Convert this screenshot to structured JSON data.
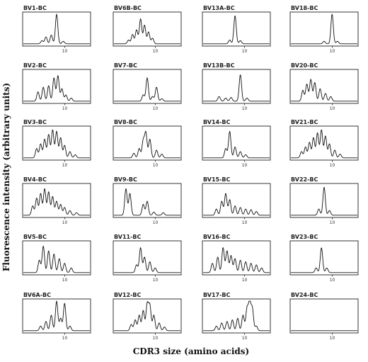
{
  "figure": {
    "ylabel": "Fluorescence intensity (arbitrary units)",
    "xlabel": "CDR3 size (amino acids)"
  },
  "chart_data": {
    "type": "line",
    "layout": "small-multiples grid, 6 rows x 4 columns",
    "x_tick_label": "10",
    "baseline": 0.05,
    "panels": [
      {
        "title": "BV1-BC",
        "peaks": [
          [
            0.28,
            0.1
          ],
          [
            0.34,
            0.22
          ],
          [
            0.42,
            0.28
          ],
          [
            0.5,
            0.95
          ],
          [
            0.6,
            0.08
          ]
        ]
      },
      {
        "title": "BV6B-BC",
        "peaks": [
          [
            0.22,
            0.12
          ],
          [
            0.28,
            0.3
          ],
          [
            0.34,
            0.45
          ],
          [
            0.4,
            0.8
          ],
          [
            0.46,
            0.6
          ],
          [
            0.52,
            0.38
          ],
          [
            0.58,
            0.18
          ]
        ]
      },
      {
        "title": "BV13A-BC",
        "peaks": [
          [
            0.4,
            0.12
          ],
          [
            0.48,
            0.9
          ],
          [
            0.56,
            0.1
          ]
        ]
      },
      {
        "title": "BV18-BC",
        "peaks": [
          [
            0.5,
            0.08
          ],
          [
            0.62,
            0.95
          ],
          [
            0.7,
            0.08
          ]
        ]
      },
      {
        "title": "BV2-BC",
        "peaks": [
          [
            0.22,
            0.3
          ],
          [
            0.3,
            0.45
          ],
          [
            0.38,
            0.5
          ],
          [
            0.46,
            0.75
          ],
          [
            0.52,
            0.82
          ],
          [
            0.58,
            0.4
          ],
          [
            0.64,
            0.2
          ],
          [
            0.72,
            0.1
          ]
        ]
      },
      {
        "title": "BV7-BC",
        "peaks": [
          [
            0.44,
            0.2
          ],
          [
            0.5,
            0.75
          ],
          [
            0.58,
            0.15
          ],
          [
            0.64,
            0.45
          ],
          [
            0.72,
            0.08
          ]
        ]
      },
      {
        "title": "BV13B-BC",
        "peaks": [
          [
            0.24,
            0.15
          ],
          [
            0.34,
            0.1
          ],
          [
            0.42,
            0.12
          ],
          [
            0.56,
            0.85
          ],
          [
            0.66,
            0.1
          ]
        ]
      },
      {
        "title": "BV20-BC",
        "peaks": [
          [
            0.18,
            0.35
          ],
          [
            0.24,
            0.55
          ],
          [
            0.3,
            0.7
          ],
          [
            0.36,
            0.6
          ],
          [
            0.44,
            0.4
          ],
          [
            0.52,
            0.25
          ],
          [
            0.6,
            0.15
          ]
        ]
      },
      {
        "title": "BV3-BC",
        "peaks": [
          [
            0.2,
            0.3
          ],
          [
            0.26,
            0.45
          ],
          [
            0.32,
            0.6
          ],
          [
            0.38,
            0.75
          ],
          [
            0.44,
            0.9
          ],
          [
            0.5,
            0.85
          ],
          [
            0.56,
            0.65
          ],
          [
            0.62,
            0.4
          ],
          [
            0.7,
            0.2
          ],
          [
            0.78,
            0.1
          ]
        ]
      },
      {
        "title": "BV8-BC",
        "peaks": [
          [
            0.3,
            0.15
          ],
          [
            0.38,
            0.3
          ],
          [
            0.44,
            0.55
          ],
          [
            0.48,
            0.8
          ],
          [
            0.54,
            0.6
          ],
          [
            0.64,
            0.25
          ],
          [
            0.72,
            0.12
          ]
        ]
      },
      {
        "title": "BV14-BC",
        "peaks": [
          [
            0.34,
            0.3
          ],
          [
            0.4,
            0.85
          ],
          [
            0.48,
            0.35
          ],
          [
            0.56,
            0.2
          ],
          [
            0.64,
            0.1
          ]
        ]
      },
      {
        "title": "BV21-BC",
        "peaks": [
          [
            0.16,
            0.2
          ],
          [
            0.22,
            0.35
          ],
          [
            0.28,
            0.5
          ],
          [
            0.34,
            0.65
          ],
          [
            0.4,
            0.8
          ],
          [
            0.46,
            0.9
          ],
          [
            0.52,
            0.7
          ],
          [
            0.58,
            0.45
          ],
          [
            0.66,
            0.25
          ],
          [
            0.74,
            0.12
          ]
        ]
      },
      {
        "title": "BV4-BC",
        "peaks": [
          [
            0.14,
            0.3
          ],
          [
            0.2,
            0.55
          ],
          [
            0.26,
            0.7
          ],
          [
            0.32,
            0.85
          ],
          [
            0.38,
            0.75
          ],
          [
            0.44,
            0.6
          ],
          [
            0.5,
            0.45
          ],
          [
            0.56,
            0.35
          ],
          [
            0.62,
            0.25
          ],
          [
            0.7,
            0.15
          ],
          [
            0.8,
            0.08
          ]
        ]
      },
      {
        "title": "BV9-BC",
        "peaks": [
          [
            0.18,
            0.85
          ],
          [
            0.24,
            0.7
          ],
          [
            0.44,
            0.35
          ],
          [
            0.5,
            0.45
          ],
          [
            0.6,
            0.1
          ],
          [
            0.74,
            0.08
          ]
        ]
      },
      {
        "title": "BV15-BC",
        "peaks": [
          [
            0.2,
            0.2
          ],
          [
            0.28,
            0.45
          ],
          [
            0.34,
            0.7
          ],
          [
            0.4,
            0.5
          ],
          [
            0.48,
            0.3
          ],
          [
            0.56,
            0.25
          ],
          [
            0.64,
            0.2
          ],
          [
            0.72,
            0.18
          ],
          [
            0.8,
            0.12
          ]
        ]
      },
      {
        "title": "BV22-BC",
        "peaks": [
          [
            0.42,
            0.2
          ],
          [
            0.5,
            0.9
          ],
          [
            0.58,
            0.15
          ]
        ]
      },
      {
        "title": "BV5-BC",
        "peaks": [
          [
            0.24,
            0.4
          ],
          [
            0.3,
            0.85
          ],
          [
            0.38,
            0.7
          ],
          [
            0.46,
            0.6
          ],
          [
            0.54,
            0.45
          ],
          [
            0.62,
            0.3
          ],
          [
            0.72,
            0.15
          ]
        ]
      },
      {
        "title": "BV11-BC",
        "peaks": [
          [
            0.34,
            0.25
          ],
          [
            0.4,
            0.8
          ],
          [
            0.46,
            0.5
          ],
          [
            0.54,
            0.35
          ],
          [
            0.62,
            0.15
          ]
        ]
      },
      {
        "title": "BV16-BC",
        "peaks": [
          [
            0.14,
            0.3
          ],
          [
            0.22,
            0.5
          ],
          [
            0.3,
            0.8
          ],
          [
            0.36,
            0.7
          ],
          [
            0.42,
            0.55
          ],
          [
            0.48,
            0.45
          ],
          [
            0.56,
            0.4
          ],
          [
            0.64,
            0.35
          ],
          [
            0.72,
            0.3
          ],
          [
            0.8,
            0.25
          ],
          [
            0.88,
            0.15
          ]
        ]
      },
      {
        "title": "BV23-BC",
        "peaks": [
          [
            0.38,
            0.15
          ],
          [
            0.46,
            0.8
          ],
          [
            0.54,
            0.15
          ]
        ]
      },
      {
        "title": "BV6A-BC",
        "peaks": [
          [
            0.26,
            0.15
          ],
          [
            0.34,
            0.3
          ],
          [
            0.42,
            0.5
          ],
          [
            0.5,
            0.95
          ],
          [
            0.56,
            0.4
          ],
          [
            0.62,
            0.88
          ],
          [
            0.7,
            0.15
          ]
        ]
      },
      {
        "title": "BV12-BC",
        "peaks": [
          [
            0.26,
            0.2
          ],
          [
            0.32,
            0.35
          ],
          [
            0.38,
            0.5
          ],
          [
            0.44,
            0.65
          ],
          [
            0.5,
            0.85
          ],
          [
            0.54,
            0.8
          ],
          [
            0.6,
            0.5
          ],
          [
            0.68,
            0.25
          ],
          [
            0.76,
            0.12
          ]
        ]
      },
      {
        "title": "BV17-BC",
        "peaks": [
          [
            0.2,
            0.15
          ],
          [
            0.28,
            0.25
          ],
          [
            0.36,
            0.3
          ],
          [
            0.44,
            0.35
          ],
          [
            0.52,
            0.4
          ],
          [
            0.6,
            0.5
          ],
          [
            0.66,
            0.7
          ],
          [
            0.7,
            0.9
          ],
          [
            0.74,
            0.7
          ],
          [
            0.8,
            0.15
          ]
        ]
      },
      {
        "title": "BV24-BC",
        "peaks": []
      }
    ]
  }
}
